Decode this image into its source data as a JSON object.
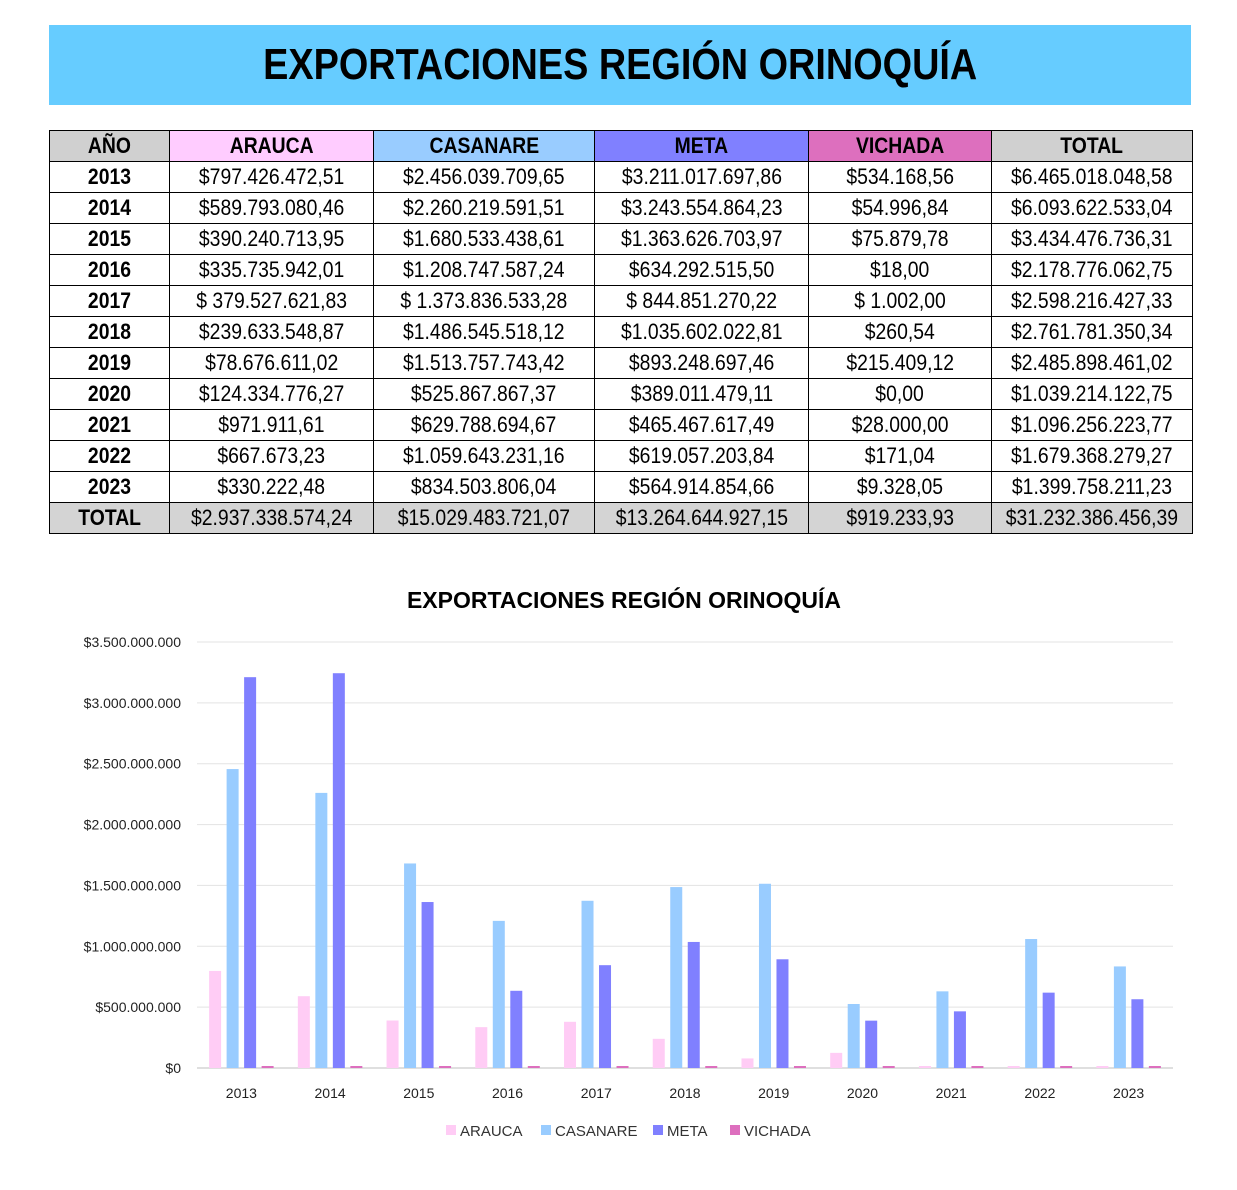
{
  "banner_title": "EXPORTACIONES REGIÓN ORINOQUÍA",
  "table": {
    "headers": [
      "AÑO",
      "ARAUCA",
      "CASANARE",
      "META",
      "VICHADA",
      "TOTAL"
    ],
    "header_colors": [
      "#d0d0d0",
      "#ffccff",
      "#99ccff",
      "#8080ff",
      "#dd6fbe",
      "#d0d0d0"
    ],
    "rows": [
      [
        "2013",
        "$797.426.472,51",
        "$2.456.039.709,65",
        "$3.211.017.697,86",
        "$534.168,56",
        "$6.465.018.048,58"
      ],
      [
        "2014",
        "$589.793.080,46",
        "$2.260.219.591,51",
        "$3.243.554.864,23",
        "$54.996,84",
        "$6.093.622.533,04"
      ],
      [
        "2015",
        "$390.240.713,95",
        "$1.680.533.438,61",
        "$1.363.626.703,97",
        "$75.879,78",
        "$3.434.476.736,31"
      ],
      [
        "2016",
        "$335.735.942,01",
        "$1.208.747.587,24",
        "$634.292.515,50",
        "$18,00",
        "$2.178.776.062,75"
      ],
      [
        "2017",
        "$ 379.527.621,83",
        "$ 1.373.836.533,28",
        "$ 844.851.270,22",
        "$ 1.002,00",
        "$2.598.216.427,33"
      ],
      [
        "2018",
        "$239.633.548,87",
        "$1.486.545.518,12",
        "$1.035.602.022,81",
        "$260,54",
        "$2.761.781.350,34"
      ],
      [
        "2019",
        "$78.676.611,02",
        "$1.513.757.743,42",
        "$893.248.697,46",
        "$215.409,12",
        "$2.485.898.461,02"
      ],
      [
        "2020",
        "$124.334.776,27",
        "$525.867.867,37",
        "$389.011.479,11",
        "$0,00",
        "$1.039.214.122,75"
      ],
      [
        "2021",
        "$971.911,61",
        "$629.788.694,67",
        "$465.467.617,49",
        "$28.000,00",
        "$1.096.256.223,77"
      ],
      [
        "2022",
        "$667.673,23",
        "$1.059.643.231,16",
        "$619.057.203,84",
        "$171,04",
        "$1.679.368.279,27"
      ],
      [
        "2023",
        "$330.222,48",
        "$834.503.806,04",
        "$564.914.854,66",
        "$9.328,05",
        "$1.399.758.211,23"
      ]
    ],
    "total_row": [
      "TOTAL",
      "$2.937.338.574,24",
      "$15.029.483.721,07",
      "$13.264.644.927,15",
      "$919.233,93",
      "$31.232.386.456,39"
    ]
  },
  "chart_data": {
    "type": "bar",
    "title": "EXPORTACIONES REGIÓN ORINOQUÍA",
    "xlabel": "",
    "ylabel": "",
    "ylim": [
      0,
      3500000000
    ],
    "y_ticks": [
      0,
      500000000,
      1000000000,
      1500000000,
      2000000000,
      2500000000,
      3000000000,
      3500000000
    ],
    "y_tick_labels": [
      "$0",
      "$500.000.000",
      "$1.000.000.000",
      "$1.500.000.000",
      "$2.000.000.000",
      "$2.500.000.000",
      "$3.000.000.000",
      "$3.500.000.000"
    ],
    "grid": true,
    "legend_position": "bottom",
    "categories": [
      "2013",
      "2014",
      "2015",
      "2016",
      "2017",
      "2018",
      "2019",
      "2020",
      "2021",
      "2022",
      "2023"
    ],
    "series": [
      {
        "name": "ARAUCA",
        "color": "#ffccf5",
        "values": [
          797426472.51,
          589793080.46,
          390240713.95,
          335735942.01,
          379527621.83,
          239633548.87,
          78676611.02,
          124334776.27,
          971911.61,
          667673.23,
          330222.48
        ]
      },
      {
        "name": "CASANARE",
        "color": "#99ccff",
        "values": [
          2456039709.65,
          2260219591.51,
          1680533438.61,
          1208747587.24,
          1373836533.28,
          1486545518.12,
          1513757743.42,
          525867867.37,
          629788694.67,
          1059643231.16,
          834503806.04
        ]
      },
      {
        "name": "META",
        "color": "#8080ff",
        "values": [
          3211017697.86,
          3243554864.23,
          1363626703.97,
          634292515.5,
          844851270.22,
          1035602022.81,
          893248697.46,
          389011479.11,
          465467617.49,
          619057203.84,
          564914854.66
        ]
      },
      {
        "name": "VICHADA",
        "color": "#dd6fbe",
        "values": [
          534168.56,
          54996.84,
          75879.78,
          18.0,
          1002.0,
          260.54,
          215409.12,
          0.0,
          28000.0,
          171.04,
          9328.05
        ]
      }
    ]
  }
}
